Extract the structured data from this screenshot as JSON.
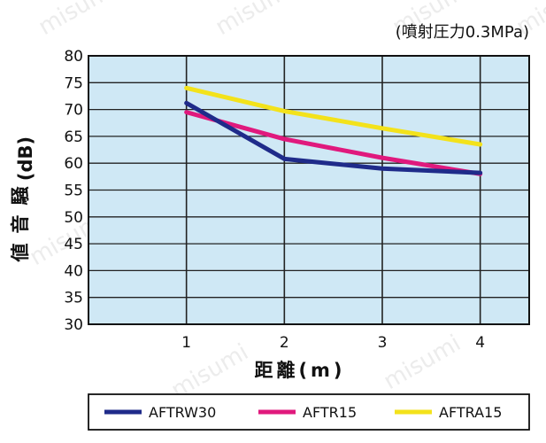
{
  "chart_data": {
    "type": "line",
    "condition": "(噴射圧力0.3MPa)",
    "ylabel": "騒音値(dB)",
    "xlabel": "距離(m)",
    "x": [
      1,
      2,
      3,
      4
    ],
    "xticks": [
      "1",
      "2",
      "3",
      "4"
    ],
    "xlim": [
      0,
      4.5
    ],
    "ylim": [
      30,
      80
    ],
    "yticks": [
      "30",
      "35",
      "40",
      "45",
      "50",
      "55",
      "60",
      "65",
      "70",
      "75",
      "80"
    ],
    "grid": true,
    "legend_position": "bottom",
    "plot_background": "#cfe8f5",
    "series": [
      {
        "name": "AFTRW30",
        "color": "#1f2b8a",
        "values": [
          71.2,
          60.8,
          59.0,
          58.2
        ]
      },
      {
        "name": "AFTR15",
        "color": "#e0197d",
        "values": [
          69.5,
          64.5,
          61.0,
          58.0
        ]
      },
      {
        "name": "AFTRA15",
        "color": "#f3e21b",
        "values": [
          74.0,
          69.7,
          66.5,
          63.5
        ]
      }
    ]
  },
  "watermark": "misumi"
}
